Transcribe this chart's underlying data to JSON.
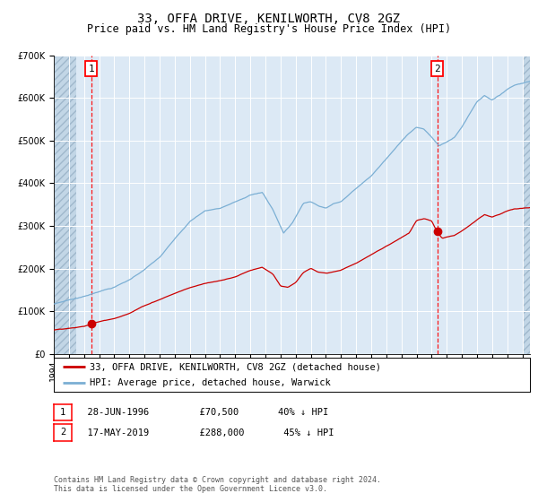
{
  "title": "33, OFFA DRIVE, KENILWORTH, CV8 2GZ",
  "subtitle": "Price paid vs. HM Land Registry's House Price Index (HPI)",
  "background_color": "#dce9f5",
  "plot_bg_color": "#dce9f5",
  "hatch_color": "#b8cfe0",
  "grid_color": "#ffffff",
  "red_line_color": "#cc0000",
  "blue_line_color": "#7bafd4",
  "sale1_date": 1996.49,
  "sale1_price": 70500,
  "sale2_date": 2019.38,
  "sale2_price": 288000,
  "xmin": 1994.0,
  "xmax": 2025.5,
  "ymin": 0,
  "ymax": 700000,
  "legend_label_red": "33, OFFA DRIVE, KENILWORTH, CV8 2GZ (detached house)",
  "legend_label_blue": "HPI: Average price, detached house, Warwick",
  "table_row1": [
    "1",
    "28-JUN-1996",
    "£70,500",
    "40% ↓ HPI"
  ],
  "table_row2": [
    "2",
    "17-MAY-2019",
    "£288,000",
    "45% ↓ HPI"
  ],
  "footer": "Contains HM Land Registry data © Crown copyright and database right 2024.\nThis data is licensed under the Open Government Licence v3.0.",
  "title_fontsize": 10,
  "subtitle_fontsize": 8.5,
  "tick_fontsize": 7,
  "legend_fontsize": 7.5,
  "footer_fontsize": 6,
  "hpi_milestones": {
    "1994.0": 117000,
    "1995.0": 127000,
    "1996.0": 135000,
    "1997.0": 148000,
    "1998.0": 158000,
    "1999.0": 175000,
    "2000.0": 200000,
    "2001.0": 228000,
    "2002.0": 270000,
    "2003.0": 310000,
    "2004.0": 335000,
    "2005.0": 340000,
    "2006.0": 358000,
    "2007.0": 375000,
    "2007.8": 380000,
    "2008.5": 340000,
    "2009.2": 285000,
    "2009.8": 310000,
    "2010.5": 355000,
    "2011.0": 360000,
    "2011.5": 350000,
    "2012.0": 345000,
    "2012.5": 355000,
    "2013.0": 360000,
    "2014.0": 390000,
    "2015.0": 420000,
    "2016.0": 460000,
    "2017.0": 500000,
    "2017.5": 520000,
    "2018.0": 535000,
    "2018.5": 530000,
    "2019.0": 510000,
    "2019.5": 490000,
    "2020.0": 500000,
    "2020.5": 510000,
    "2021.0": 535000,
    "2021.5": 565000,
    "2022.0": 595000,
    "2022.5": 610000,
    "2023.0": 600000,
    "2023.5": 610000,
    "2024.0": 625000,
    "2024.5": 635000,
    "2025.5": 645000
  },
  "red_milestones": {
    "1994.0": 56000,
    "1995.0": 61000,
    "1996.0": 65000,
    "1996.49": 70500,
    "1997.0": 76000,
    "1998.0": 85000,
    "1999.0": 97000,
    "2000.0": 115000,
    "2001.0": 130000,
    "2002.0": 145000,
    "2003.0": 158000,
    "2004.0": 168000,
    "2005.0": 175000,
    "2006.0": 185000,
    "2007.0": 200000,
    "2007.8": 208000,
    "2008.5": 192000,
    "2009.0": 165000,
    "2009.5": 162000,
    "2010.0": 172000,
    "2010.5": 195000,
    "2011.0": 205000,
    "2011.5": 195000,
    "2012.0": 192000,
    "2012.5": 195000,
    "2013.0": 200000,
    "2014.0": 215000,
    "2015.0": 235000,
    "2016.0": 255000,
    "2017.0": 275000,
    "2017.5": 285000,
    "2018.0": 315000,
    "2018.5": 320000,
    "2019.0": 315000,
    "2019.38": 288000,
    "2019.7": 275000,
    "2020.0": 278000,
    "2020.5": 282000,
    "2021.0": 293000,
    "2021.5": 305000,
    "2022.0": 318000,
    "2022.5": 330000,
    "2023.0": 325000,
    "2023.5": 332000,
    "2024.0": 340000,
    "2024.5": 345000,
    "2025.5": 348000
  }
}
